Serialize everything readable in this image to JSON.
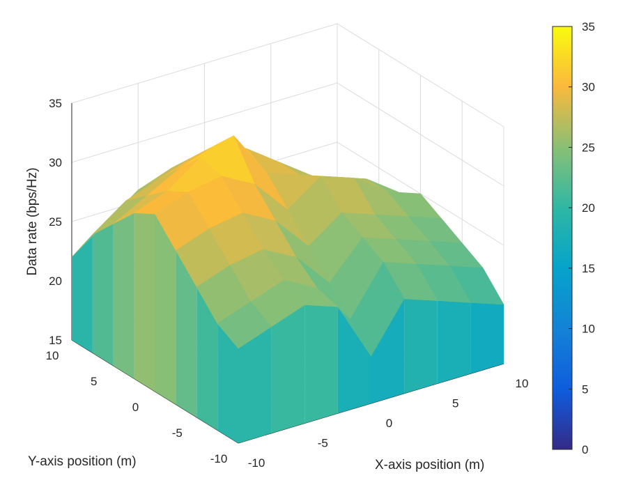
{
  "chart_data": {
    "type": "surface",
    "title": "",
    "xlabel": "X-axis position (m)",
    "ylabel": "Y-axis position (m)",
    "zlabel": "Data rate (bps/Hz)",
    "xlim": [
      -10,
      10
    ],
    "ylim": [
      -10,
      10
    ],
    "zlim": [
      15,
      35
    ],
    "x_ticks": [
      "-10",
      "-5",
      "0",
      "5",
      "10"
    ],
    "y_ticks": [
      "-10",
      "-5",
      "0",
      "5",
      "10"
    ],
    "z_ticks": [
      "15",
      "20",
      "25",
      "30",
      "35"
    ],
    "colorbar": {
      "min": 0,
      "max": 35,
      "ticks": [
        "0",
        "5",
        "10",
        "15",
        "20",
        "25",
        "30",
        "35"
      ],
      "colormap": "parula"
    },
    "grid": true,
    "x": [
      -10,
      -7.5,
      -5,
      -2.5,
      0,
      2.5,
      5,
      7.5,
      10
    ],
    "y": [
      -10,
      -7.5,
      -5,
      -2.5,
      0,
      2.5,
      5,
      7.5,
      10
    ],
    "z": [
      [
        23,
        24,
        25,
        24,
        19,
        23,
        22,
        21,
        20
      ],
      [
        24,
        25,
        26,
        24.5,
        21,
        25,
        24,
        23,
        22
      ],
      [
        26,
        27,
        27.5,
        26,
        23,
        26,
        25,
        24,
        23
      ],
      [
        28,
        29,
        29.5,
        28,
        25,
        27,
        26,
        25,
        24
      ],
      [
        30,
        31,
        31.5,
        30,
        27,
        29,
        28,
        26,
        25
      ],
      [
        29,
        30,
        32,
        33,
        29,
        28,
        27,
        26,
        24
      ],
      [
        27,
        28.5,
        30,
        31,
        30,
        28,
        26,
        25,
        23
      ],
      [
        25,
        27,
        28,
        29,
        28.5,
        27,
        25,
        24,
        22
      ],
      [
        22,
        24,
        26,
        27,
        26,
        25,
        24,
        23,
        21
      ]
    ]
  }
}
